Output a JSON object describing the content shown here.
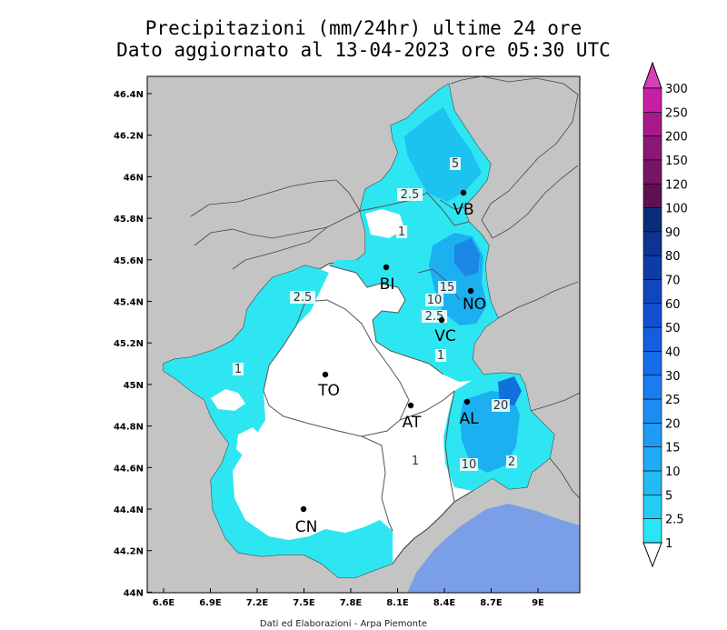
{
  "title_line1": "Precipitazioni (mm/24hr) ultime 24 ore",
  "title_line2": "Dato aggiornato al 13-04-2023 ore 05:30 UTC",
  "credit": "Dati ed Elaborazioni - Arpa Piemonte",
  "colors": {
    "background_land": "#c4c4c4",
    "sea": "#7b9fe6",
    "piemonte_base": "#ffffff",
    "light_rain": "#2ee6f2",
    "medium_rain": "#1cb6f0",
    "heavy_rain": "#1278dc"
  },
  "lat_ticks": [
    "46.4N",
    "46.2N",
    "46N",
    "45.8N",
    "45.6N",
    "45.4N",
    "45.2N",
    "45N",
    "44.8N",
    "44.6N",
    "44.4N",
    "44.2N",
    "44N"
  ],
  "lon_ticks": [
    "6.6E",
    "6.9E",
    "7.2E",
    "7.5E",
    "7.8E",
    "8.1E",
    "8.4E",
    "8.7E",
    "9E"
  ],
  "colorbar": [
    {
      "value": "300",
      "color": "#c71fa4"
    },
    {
      "value": "250",
      "color": "#a81a8c"
    },
    {
      "value": "200",
      "color": "#8c1676"
    },
    {
      "value": "150",
      "color": "#781466"
    },
    {
      "value": "120",
      "color": "#5e1050"
    },
    {
      "value": "100",
      "color": "#0a2c78"
    },
    {
      "value": "90",
      "color": "#0c3490"
    },
    {
      "value": "80",
      "color": "#0e3ca6"
    },
    {
      "value": "70",
      "color": "#1046be"
    },
    {
      "value": "60",
      "color": "#1250d0"
    },
    {
      "value": "50",
      "color": "#145ee0"
    },
    {
      "value": "40",
      "color": "#166cea"
    },
    {
      "value": "30",
      "color": "#1a7cf0"
    },
    {
      "value": "25",
      "color": "#1c8cf2"
    },
    {
      "value": "20",
      "color": "#1e9cf4"
    },
    {
      "value": "15",
      "color": "#20acf4"
    },
    {
      "value": "10",
      "color": "#22bcf4"
    },
    {
      "value": "5",
      "color": "#24ccf4"
    },
    {
      "value": "2.5",
      "color": "#28e6f4"
    },
    {
      "value": "1",
      "color": "#ffffff"
    }
  ],
  "cities": [
    {
      "code": "VB"
    },
    {
      "code": "BI"
    },
    {
      "code": "NO"
    },
    {
      "code": "VC"
    },
    {
      "code": "TO"
    },
    {
      "code": "AT"
    },
    {
      "code": "AL"
    },
    {
      "code": "CN"
    }
  ],
  "contour_labels": [
    "5",
    "2.5",
    "1",
    "15",
    "10",
    "2.5",
    "1",
    "2.5",
    "1",
    "20",
    "1",
    "10",
    "2"
  ]
}
